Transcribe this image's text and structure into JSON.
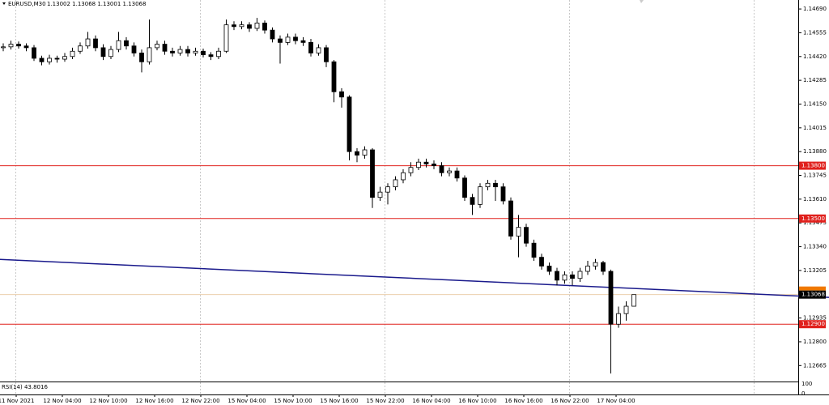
{
  "chart_data": {
    "type": "candlestick",
    "symbol": "EURUSD,M30",
    "quote": "1.13002 1.13068 1.13001 1.13068",
    "open": [
      1.1447,
      1.14475,
      1.1449,
      1.1448,
      1.1447,
      1.1441,
      1.1439,
      1.1441,
      1.14405,
      1.1442,
      1.1445,
      1.1448,
      1.1452,
      1.1447,
      1.1442,
      1.1446,
      1.1451,
      1.1448,
      1.1444,
      1.1439,
      1.1447,
      1.1449,
      1.1445,
      1.1444,
      1.1446,
      1.1444,
      1.1445,
      1.1443,
      1.1442,
      1.1445,
      1.146,
      1.1459,
      1.146,
      1.1458,
      1.1461,
      1.1457,
      1.1452,
      1.145,
      1.1453,
      1.1451,
      1.145,
      1.1444,
      1.1447,
      1.1439,
      1.1422,
      1.1419,
      1.1388,
      1.1386,
      1.1389,
      1.1362,
      1.1365,
      1.1368,
      1.1372,
      1.1376,
      1.1379,
      1.1382,
      1.1381,
      1.138,
      1.1376,
      1.1377,
      1.1373,
      1.1362,
      1.1358,
      1.1368,
      1.137,
      1.1368,
      1.136,
      1.134,
      1.1345,
      1.1336,
      1.1328,
      1.1323,
      1.132,
      1.1315,
      1.1318,
      1.1316,
      1.132,
      1.1323,
      1.1325,
      1.132,
      1.129,
      1.1296,
      1.13002
    ],
    "high": [
      1.14495,
      1.1451,
      1.14505,
      1.14495,
      1.14485,
      1.14425,
      1.1443,
      1.14425,
      1.1444,
      1.1447,
      1.145,
      1.1456,
      1.1454,
      1.1449,
      1.1448,
      1.1456,
      1.1453,
      1.145,
      1.1446,
      1.1463,
      1.1451,
      1.1451,
      1.1447,
      1.1448,
      1.1448,
      1.1447,
      1.14465,
      1.14445,
      1.1447,
      1.1463,
      1.1462,
      1.1462,
      1.14615,
      1.1464,
      1.14625,
      1.14585,
      1.1454,
      1.1455,
      1.1455,
      1.1453,
      1.1452,
      1.1449,
      1.14485,
      1.144,
      1.1424,
      1.142,
      1.139,
      1.1391,
      1.139,
      1.1368,
      1.137,
      1.1374,
      1.1378,
      1.1382,
      1.1384,
      1.1384,
      1.1383,
      1.1382,
      1.1379,
      1.1379,
      1.13745,
      1.1364,
      1.137,
      1.1372,
      1.1372,
      1.137,
      1.1362,
      1.1352,
      1.1347,
      1.1338,
      1.133,
      1.1325,
      1.1322,
      1.132,
      1.132,
      1.1322,
      1.1326,
      1.1327,
      1.1326,
      1.1321,
      1.13,
      1.1303,
      1.13068
    ],
    "low": [
      1.1445,
      1.1446,
      1.14465,
      1.1445,
      1.14395,
      1.1437,
      1.14375,
      1.14385,
      1.1439,
      1.14405,
      1.14435,
      1.14465,
      1.1445,
      1.144,
      1.14405,
      1.14445,
      1.1446,
      1.1442,
      1.1433,
      1.14375,
      1.14455,
      1.1443,
      1.1442,
      1.14425,
      1.1442,
      1.14425,
      1.14415,
      1.144,
      1.14405,
      1.1444,
      1.1457,
      1.14575,
      1.1456,
      1.14565,
      1.1455,
      1.145,
      1.1438,
      1.14485,
      1.1449,
      1.1448,
      1.1442,
      1.14425,
      1.1436,
      1.1416,
      1.1413,
      1.1383,
      1.1382,
      1.1384,
      1.1356,
      1.136,
      1.1358,
      1.1366,
      1.137,
      1.1374,
      1.13775,
      1.1379,
      1.1378,
      1.1374,
      1.1374,
      1.1371,
      1.136,
      1.1352,
      1.1356,
      1.1366,
      1.136,
      1.1358,
      1.1338,
      1.1328,
      1.1334,
      1.1326,
      1.1321,
      1.1318,
      1.1312,
      1.1313,
      1.1312,
      1.1314,
      1.1318,
      1.1321,
      1.1318,
      1.1262,
      1.1288,
      1.1292,
      1.13001
    ],
    "close": [
      1.14475,
      1.1449,
      1.1448,
      1.1447,
      1.1441,
      1.1439,
      1.1441,
      1.14405,
      1.1442,
      1.1445,
      1.1448,
      1.1452,
      1.1447,
      1.1442,
      1.1446,
      1.1451,
      1.1448,
      1.1444,
      1.1439,
      1.1447,
      1.1449,
      1.1445,
      1.1444,
      1.1446,
      1.1444,
      1.1445,
      1.1443,
      1.1442,
      1.1445,
      1.146,
      1.1459,
      1.146,
      1.1458,
      1.1461,
      1.1457,
      1.1452,
      1.145,
      1.1453,
      1.1451,
      1.145,
      1.1444,
      1.1447,
      1.1439,
      1.1422,
      1.1419,
      1.1388,
      1.1386,
      1.1389,
      1.1362,
      1.1365,
      1.1368,
      1.1372,
      1.1376,
      1.1379,
      1.1382,
      1.1381,
      1.138,
      1.1376,
      1.1377,
      1.1373,
      1.1362,
      1.1358,
      1.1368,
      1.137,
      1.1368,
      1.136,
      1.134,
      1.1345,
      1.1336,
      1.1328,
      1.1323,
      1.132,
      1.1315,
      1.1318,
      1.1316,
      1.132,
      1.1323,
      1.1325,
      1.132,
      1.129,
      1.1296,
      1.13002,
      1.13068
    ],
    "ylim": [
      1.12579,
      1.14741
    ],
    "yticks": [
      {
        "value": 1.1469,
        "label": "1.14690"
      },
      1.14555,
      {
        "value": 1.1442,
        "label": "1.14420"
      },
      1.14285,
      {
        "value": 1.1415,
        "label": "1.14150"
      },
      1.14015,
      {
        "value": 1.1388,
        "label": "1.13880"
      },
      1.13745,
      {
        "value": 1.1361,
        "label": "1.13610"
      },
      1.13475,
      {
        "value": 1.1334,
        "label": "1.13340"
      },
      1.13205,
      1.12935,
      {
        "value": 1.128,
        "label": "1.12800"
      },
      1.12665
    ],
    "levels": [
      {
        "value": 1.138,
        "label": "1.13800"
      },
      {
        "value": 1.135,
        "label": "1.13500"
      },
      {
        "value": 1.129,
        "label": "1.12900"
      }
    ],
    "level_color": "#e0201c",
    "current_price": 1.13068,
    "trendline": {
      "start": 1.13268,
      "end": 1.13052,
      "color": "#1a1a8c"
    },
    "xlabels": [
      "11 Nov 2021",
      "12 Nov 04:00",
      "12 Nov 10:00",
      "12 Nov 16:00",
      "12 Nov 22:00",
      "15 Nov 04:00",
      "15 Nov 10:00",
      "15 Nov 16:00",
      "15 Nov 22:00",
      "16 Nov 04:00",
      "16 Nov 10:00",
      "16 Nov 16:00",
      "16 Nov 22:00",
      "17 Nov 04:00"
    ],
    "indicator": {
      "name": "RSI(14) 43.8016",
      "ylim": [
        0,
        100
      ],
      "yticks": [
        100,
        0
      ]
    }
  }
}
